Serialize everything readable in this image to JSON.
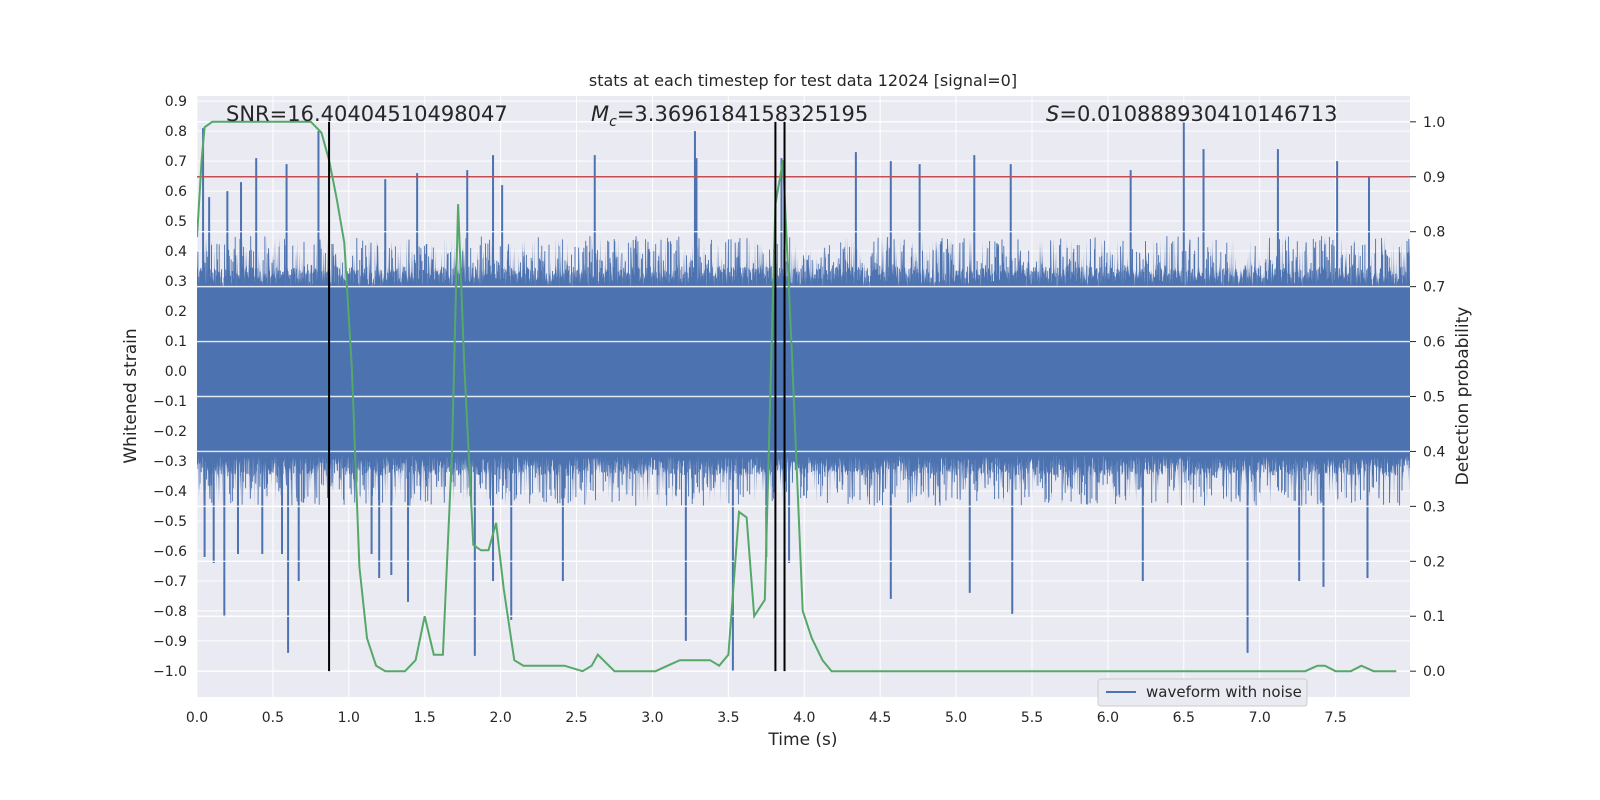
{
  "chart_data": {
    "type": "line",
    "title": "stats at each timestep for test data 12024 [signal=0]",
    "xlabel": "Time (s)",
    "ylabel": "Whitened strain",
    "y2label": "Detection probability",
    "xlim": [
      0.0,
      7.99
    ],
    "ylim": [
      -1.087,
      0.917
    ],
    "y2lim": [
      -0.047,
      1.047
    ],
    "grid": true,
    "legend_position": "lower-right",
    "x_ticks": [
      "0.0",
      "0.5",
      "1.0",
      "1.5",
      "2.0",
      "2.5",
      "3.0",
      "3.5",
      "4.0",
      "4.5",
      "5.0",
      "5.5",
      "6.0",
      "6.5",
      "7.0",
      "7.5"
    ],
    "x_tick_values": [
      0.0,
      0.5,
      1.0,
      1.5,
      2.0,
      2.5,
      3.0,
      3.5,
      4.0,
      4.5,
      5.0,
      5.5,
      6.0,
      6.5,
      7.0,
      7.5
    ],
    "y_ticks": [
      "0.9",
      "0.8",
      "0.7",
      "0.6",
      "0.5",
      "0.4",
      "0.3",
      "0.2",
      "0.1",
      "0.0",
      "−0.1",
      "−0.2",
      "−0.3",
      "−0.4",
      "−0.5",
      "−0.6",
      "−0.7",
      "−0.8",
      "−0.9",
      "−1.0"
    ],
    "y_tick_values": [
      0.9,
      0.8,
      0.7,
      0.6,
      0.5,
      0.4,
      0.3,
      0.2,
      0.1,
      0.0,
      -0.1,
      -0.2,
      -0.3,
      -0.4,
      -0.5,
      -0.6,
      -0.7,
      -0.8,
      -0.9,
      -1.0
    ],
    "y2_ticks": [
      "1.0",
      "0.9",
      "0.8",
      "0.7",
      "0.6",
      "0.5",
      "0.4",
      "0.3",
      "0.2",
      "0.1",
      "0.0"
    ],
    "y2_tick_values": [
      1.0,
      0.9,
      0.8,
      0.7,
      0.6,
      0.5,
      0.4,
      0.3,
      0.2,
      0.1,
      0.0
    ],
    "annotations": {
      "snr": "SNR=16.40404510498047",
      "mc_symbol": "M",
      "mc_sub": "c",
      "mc_value": "=3.3696184158325195",
      "s_symbol": "S",
      "s_value": "=0.010888930410146713"
    },
    "waveform": {
      "name": "waveform with noise",
      "color": "#4c72b0",
      "core_amplitude": 0.28,
      "typical_peak": 0.45,
      "samples_per_second": 512,
      "peaks": [
        {
          "x": 0.04,
          "y": 0.81
        },
        {
          "x": 0.08,
          "y": 0.58
        },
        {
          "x": 0.2,
          "y": 0.6
        },
        {
          "x": 0.29,
          "y": 0.63
        },
        {
          "x": 0.39,
          "y": 0.71
        },
        {
          "x": 0.59,
          "y": 0.69
        },
        {
          "x": 0.8,
          "y": 0.8
        },
        {
          "x": 1.24,
          "y": 0.64
        },
        {
          "x": 1.45,
          "y": 0.66
        },
        {
          "x": 1.78,
          "y": 0.67
        },
        {
          "x": 1.95,
          "y": 0.72
        },
        {
          "x": 2.01,
          "y": 0.62
        },
        {
          "x": 2.62,
          "y": 0.72
        },
        {
          "x": 3.29,
          "y": 0.71
        },
        {
          "x": 3.28,
          "y": 0.8
        },
        {
          "x": 3.85,
          "y": 0.71
        },
        {
          "x": 4.34,
          "y": 0.73
        },
        {
          "x": 4.57,
          "y": 0.7
        },
        {
          "x": 4.76,
          "y": 0.69
        },
        {
          "x": 5.12,
          "y": 0.72
        },
        {
          "x": 5.36,
          "y": 0.69
        },
        {
          "x": 6.15,
          "y": 0.67
        },
        {
          "x": 6.5,
          "y": 0.83
        },
        {
          "x": 6.63,
          "y": 0.74
        },
        {
          "x": 7.12,
          "y": 0.74
        },
        {
          "x": 7.51,
          "y": 0.7
        },
        {
          "x": 7.72,
          "y": 0.65
        },
        {
          "x": 0.05,
          "y": -0.62
        },
        {
          "x": 0.11,
          "y": -0.64
        },
        {
          "x": 0.18,
          "y": -0.82
        },
        {
          "x": 0.27,
          "y": -0.61
        },
        {
          "x": 0.43,
          "y": -0.61
        },
        {
          "x": 0.56,
          "y": -0.61
        },
        {
          "x": 0.6,
          "y": -0.94
        },
        {
          "x": 0.67,
          "y": -0.7
        },
        {
          "x": 0.87,
          "y": -0.87
        },
        {
          "x": 1.15,
          "y": -0.61
        },
        {
          "x": 1.2,
          "y": -0.69
        },
        {
          "x": 1.28,
          "y": -0.68
        },
        {
          "x": 1.39,
          "y": -0.77
        },
        {
          "x": 1.83,
          "y": -0.95
        },
        {
          "x": 1.95,
          "y": -0.7
        },
        {
          "x": 2.07,
          "y": -0.83
        },
        {
          "x": 2.41,
          "y": -0.7
        },
        {
          "x": 3.22,
          "y": -0.9
        },
        {
          "x": 3.53,
          "y": -1.0
        },
        {
          "x": 3.75,
          "y": -0.62
        },
        {
          "x": 3.9,
          "y": -0.64
        },
        {
          "x": 4.57,
          "y": -0.76
        },
        {
          "x": 5.09,
          "y": -0.74
        },
        {
          "x": 5.37,
          "y": -0.81
        },
        {
          "x": 6.23,
          "y": -0.7
        },
        {
          "x": 6.92,
          "y": -0.94
        },
        {
          "x": 7.26,
          "y": -0.7
        },
        {
          "x": 7.42,
          "y": -0.72
        },
        {
          "x": 7.71,
          "y": -0.69
        }
      ]
    },
    "detection_probability": {
      "color": "#55a868",
      "points": [
        [
          0.0,
          0.79
        ],
        [
          0.03,
          0.93
        ],
        [
          0.05,
          0.99
        ],
        [
          0.1,
          1.0
        ],
        [
          0.2,
          1.0
        ],
        [
          0.3,
          1.0
        ],
        [
          0.4,
          1.0
        ],
        [
          0.5,
          1.0
        ],
        [
          0.6,
          1.0
        ],
        [
          0.7,
          1.0
        ],
        [
          0.75,
          1.0
        ],
        [
          0.82,
          0.98
        ],
        [
          0.87,
          0.93
        ],
        [
          0.92,
          0.86
        ],
        [
          0.97,
          0.78
        ],
        [
          1.02,
          0.55
        ],
        [
          1.07,
          0.19
        ],
        [
          1.12,
          0.06
        ],
        [
          1.18,
          0.01
        ],
        [
          1.24,
          0.0
        ],
        [
          1.37,
          0.0
        ],
        [
          1.44,
          0.02
        ],
        [
          1.5,
          0.1
        ],
        [
          1.56,
          0.03
        ],
        [
          1.62,
          0.03
        ],
        [
          1.68,
          0.4
        ],
        [
          1.72,
          0.85
        ],
        [
          1.76,
          0.56
        ],
        [
          1.82,
          0.23
        ],
        [
          1.87,
          0.22
        ],
        [
          1.92,
          0.22
        ],
        [
          1.97,
          0.27
        ],
        [
          2.02,
          0.15
        ],
        [
          2.09,
          0.02
        ],
        [
          2.15,
          0.01
        ],
        [
          2.3,
          0.01
        ],
        [
          2.42,
          0.01
        ],
        [
          2.54,
          0.0
        ],
        [
          2.6,
          0.01
        ],
        [
          2.64,
          0.03
        ],
        [
          2.75,
          0.0
        ],
        [
          2.9,
          0.0
        ],
        [
          3.02,
          0.0
        ],
        [
          3.1,
          0.01
        ],
        [
          3.18,
          0.02
        ],
        [
          3.27,
          0.02
        ],
        [
          3.38,
          0.02
        ],
        [
          3.44,
          0.01
        ],
        [
          3.5,
          0.03
        ],
        [
          3.57,
          0.29
        ],
        [
          3.62,
          0.28
        ],
        [
          3.67,
          0.1
        ],
        [
          3.74,
          0.13
        ],
        [
          3.81,
          0.85
        ],
        [
          3.86,
          0.93
        ],
        [
          3.92,
          0.57
        ],
        [
          3.99,
          0.11
        ],
        [
          4.05,
          0.06
        ],
        [
          4.12,
          0.02
        ],
        [
          4.18,
          0.0
        ],
        [
          4.3,
          0.0
        ],
        [
          4.5,
          0.0
        ],
        [
          4.7,
          0.0
        ],
        [
          4.9,
          0.0
        ],
        [
          5.1,
          0.0
        ],
        [
          5.3,
          0.0
        ],
        [
          5.5,
          0.0
        ],
        [
          5.8,
          0.0
        ],
        [
          6.0,
          0.0
        ],
        [
          6.2,
          0.0
        ],
        [
          6.4,
          0.0
        ],
        [
          6.6,
          0.0
        ],
        [
          6.8,
          0.0
        ],
        [
          7.0,
          0.0
        ],
        [
          7.2,
          0.0
        ],
        [
          7.3,
          0.0
        ],
        [
          7.38,
          0.01
        ],
        [
          7.43,
          0.01
        ],
        [
          7.5,
          0.0
        ],
        [
          7.6,
          0.0
        ],
        [
          7.67,
          0.01
        ],
        [
          7.75,
          0.0
        ],
        [
          7.9,
          0.0
        ]
      ]
    },
    "threshold": {
      "value": 0.9,
      "axis": "y2",
      "color": "#c44e52"
    },
    "event_markers": {
      "x": [
        0.87,
        3.81,
        3.87
      ],
      "y2_from": 0.0,
      "y2_to": 1.0,
      "color": "#000000"
    }
  }
}
